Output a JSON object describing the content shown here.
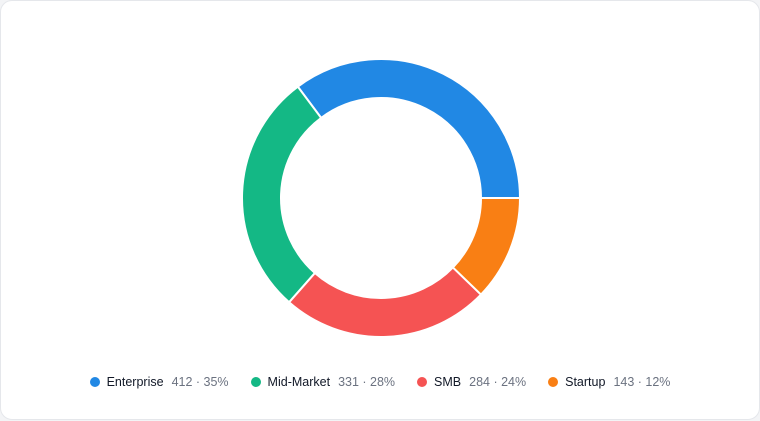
{
  "chart_data": {
    "type": "donut",
    "categories": [
      "Enterprise",
      "Mid-Market",
      "SMB",
      "Startup"
    ],
    "values": [
      412,
      331,
      284,
      143
    ],
    "value_labels": [
      "412 · 35%",
      "331 · 28%",
      "284 · 24%",
      "143 · 12%"
    ],
    "colors": [
      "#2188e4",
      "#14b885",
      "#f55353",
      "#f97f14"
    ],
    "legend": "bottom"
  }
}
